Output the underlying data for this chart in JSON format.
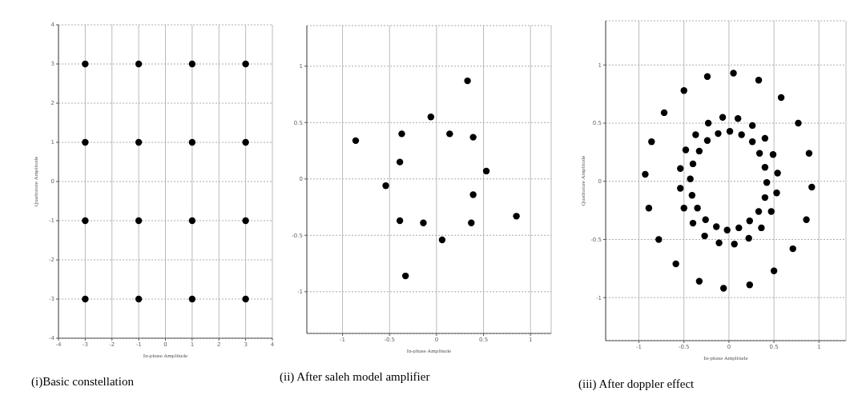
{
  "chart_data": [
    {
      "type": "scatter",
      "title": "(i)Basic constellation",
      "xlabel": "In-phase Amplitude",
      "ylabel": "Quadrature Amplitude",
      "marker": "circle",
      "grid": true,
      "xlim": [
        -4,
        4
      ],
      "ylim": [
        -4,
        4
      ],
      "xticks": [
        -4,
        -3,
        -2,
        -1,
        0,
        1,
        2,
        3,
        4
      ],
      "yticks": [
        -4,
        -3,
        -2,
        -1,
        0,
        1,
        2,
        3,
        4
      ],
      "series": [
        {
          "color": "#000000",
          "x": [
            -3,
            -1,
            1,
            3,
            -3,
            -1,
            1,
            3,
            -3,
            -1,
            1,
            3,
            -3,
            -1,
            1,
            3
          ],
          "values": [
            3,
            3,
            3,
            3,
            1,
            1,
            1,
            1,
            -1,
            -1,
            -1,
            -1,
            -3,
            -3,
            -3,
            -3
          ]
        }
      ]
    },
    {
      "type": "scatter",
      "title": "(ii) After saleh model amplifier",
      "xlabel": "In-phase Amplitude",
      "marker": "circle",
      "grid": true,
      "xlim": [
        -1.38,
        1.22
      ],
      "ylim": [
        -1.37,
        1.36
      ],
      "xticks": [
        -1,
        -0.5,
        0,
        0.5,
        1
      ],
      "yticks": [
        -1,
        -0.5,
        0,
        0.5,
        1
      ],
      "series": [
        {
          "color": "#000000",
          "x": [
            0.33,
            -0.06,
            -0.86,
            -0.37,
            0.14,
            0.39,
            -0.39,
            0.53,
            -0.54,
            0.39,
            0.85,
            -0.39,
            -0.14,
            0.37,
            0.06,
            -0.33
          ],
          "values": [
            0.87,
            0.55,
            0.34,
            0.4,
            0.4,
            0.37,
            0.15,
            0.07,
            -0.06,
            -0.14,
            -0.33,
            -0.37,
            -0.39,
            -0.39,
            -0.54,
            -0.86
          ]
        }
      ]
    },
    {
      "type": "scatter",
      "title": "(iii) After doppler effect",
      "xlabel": "In-phase Amplitude",
      "ylabel": "Quadrature Amplitude",
      "marker": "circle",
      "grid": true,
      "xlim": [
        -1.37,
        1.3
      ],
      "ylim": [
        -1.37,
        1.38
      ],
      "xticks": [
        -1,
        -0.5,
        0,
        0.5,
        1
      ],
      "yticks": [
        -1,
        -0.5,
        0,
        0.5,
        1
      ],
      "series": [
        {
          "color": "#000000",
          "x": [
            0.05,
            -0.24,
            0.33,
            -0.5,
            0.58,
            -0.72,
            0.77,
            -0.86,
            0.89,
            -0.93,
            0.92,
            -0.89,
            0.86,
            -0.78,
            0.71,
            -0.59,
            0.5,
            -0.33,
            0.23,
            -0.06,
            -0.07,
            0.1,
            -0.23,
            0.26,
            -0.37,
            0.4,
            -0.48,
            0.49,
            -0.54,
            0.54,
            -0.54,
            0.53,
            -0.5,
            0.47,
            -0.4,
            0.36,
            -0.27,
            0.22,
            -0.11,
            0.06,
            -0.12,
            0.01,
            0.14,
            -0.24,
            0.26,
            -0.33,
            0.34,
            -0.4,
            0.4,
            -0.43,
            0.42,
            -0.41,
            0.4,
            -0.35,
            0.33,
            -0.26,
            0.23,
            -0.14,
            -0.02,
            0.11
          ],
          "values": [
            0.93,
            0.9,
            0.87,
            0.78,
            0.72,
            0.59,
            0.5,
            0.34,
            0.24,
            0.06,
            -0.05,
            -0.23,
            -0.33,
            -0.5,
            -0.58,
            -0.71,
            -0.77,
            -0.86,
            -0.89,
            -0.92,
            0.55,
            0.54,
            0.5,
            0.48,
            0.4,
            0.37,
            0.27,
            0.23,
            0.11,
            0.07,
            -0.06,
            -0.1,
            -0.23,
            -0.26,
            -0.36,
            -0.4,
            -0.47,
            -0.49,
            -0.53,
            -0.54,
            0.41,
            0.43,
            0.4,
            0.35,
            0.34,
            0.26,
            0.24,
            0.15,
            0.12,
            0.02,
            -0.01,
            -0.12,
            -0.14,
            -0.23,
            -0.26,
            -0.33,
            -0.34,
            -0.39,
            -0.42,
            -0.4
          ]
        }
      ]
    }
  ]
}
